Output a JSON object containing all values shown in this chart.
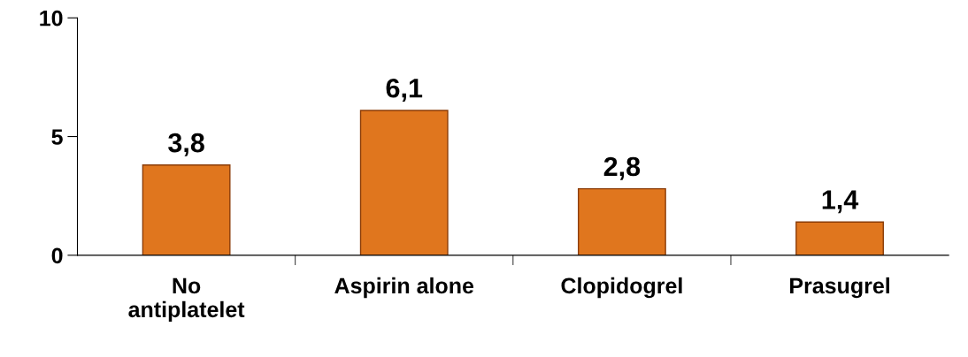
{
  "chart_data": {
    "type": "bar",
    "categories": [
      "No\nantiplatelet",
      "Aspirin alone",
      "Clopidogrel",
      "Prasugrel"
    ],
    "values": [
      3.8,
      6.1,
      2.8,
      1.4
    ],
    "value_labels": [
      "3,8",
      "6,1",
      "2,8",
      "1,4"
    ],
    "color": "#e0761e",
    "ylim": [
      0,
      10
    ],
    "yticks": [
      0,
      5,
      10
    ],
    "grid": false,
    "legend": false
  }
}
